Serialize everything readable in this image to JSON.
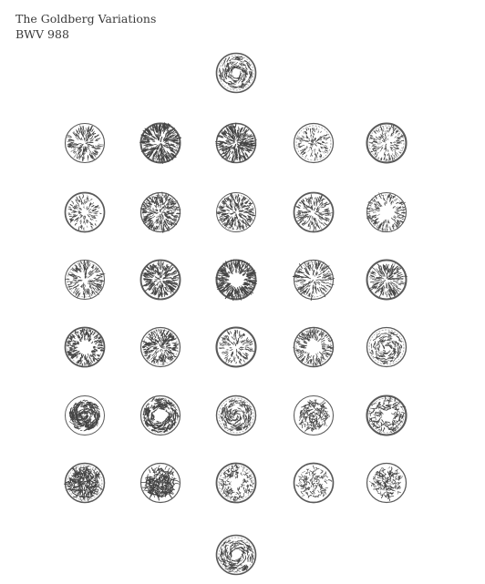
{
  "header": {
    "title": "The Goldberg Variations",
    "subtitle": "BWV 988"
  },
  "movements": {
    "aria": "aria",
    "variations_count": 30,
    "aria_da_capo": "aria-da-capo"
  },
  "colors": {
    "ink": "#444444",
    "ring": "#5a5a5a",
    "text": "#3a3a3a",
    "background": "#ffffff"
  }
}
